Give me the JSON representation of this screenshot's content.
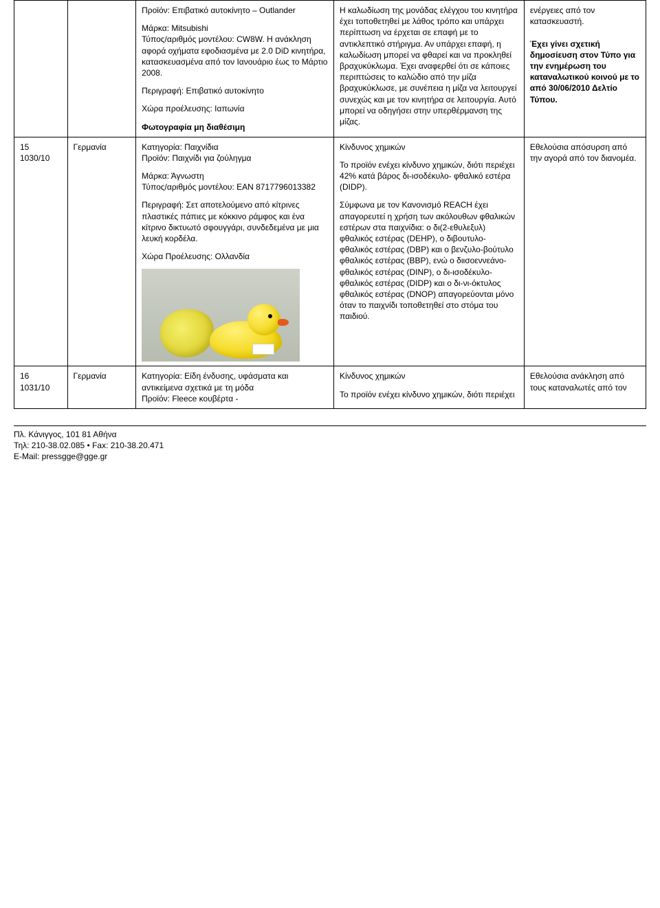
{
  "rows": [
    {
      "col1": "",
      "col2": "",
      "col3": [
        "Προϊόν: Επιβατικό αυτοκίνητο – Outlander",
        "Μάρκα: Mitsubishi\nΤύπος/αριθμός μοντέλου: CW8W. Η ανάκληση αφορά οχήματα εφοδιασμένα με 2.0 DiD κινητήρα, κατασκευασμένα από τον Ιανουάριο έως το Μάρτιο 2008.",
        "Περιγραφή: Επιβατικό αυτοκίνητο",
        "Χώρα προέλευσης: Ιαπωνία",
        "<b>Φωτογραφία μη διαθέσιμη</b>"
      ],
      "col4": "Η καλωδίωση της μονάδας ελέγχου του κινητήρα έχει τοποθετηθεί με λάθος τρόπο και υπάρχει περίπτωση να έρχεται σε επαφή με το αντικλεπτικό στήριγμα. Αν υπάρχει επαφή, η καλωδίωση μπορεί να φθαρεί και να προκληθεί βραχυκύκλωμα. Έχει αναφερθεί ότι σε κάποιες περιπτώσεις το καλώδιο από την μίζα βραχυκύκλωσε, με συνέπεια η μίζα να λειτουργεί συνεχώς και με τον κινητήρα σε λειτουργία. Αυτό μπορεί να οδηγήσει στην υπερθέρμανση της μίζας.",
      "col5": "ενέργειες από τον κατασκευαστή.\n\n<b>Έχει γίνει σχετική δημοσίευση στον Τύπο για την ενημέρωση του καταναλωτικού κοινού με το από 30/06/2010 Δελτίο Τύπου.</b>"
    },
    {
      "col1": "15\n1030/10",
      "col2": "Γερμανία",
      "col3": [
        "Κατηγορία: Παιχνίδια\nΠροϊόν: Παιχνίδι για ζούληγμα",
        "Μάρκα: Άγνωστη\nΤύπος/αριθμός μοντέλου: EAN 8717796013382",
        "Περιγραφή: Σετ αποτελούμενο από κίτρινες πλαστικές πάπιες με κόκκινο ράμφος και ένα κίτρινο δικτυωτό σφουγγάρι, συνδεδεμένα με μια λευκή κορδέλα.",
        "Χώρα Προέλευσης: Ολλανδία"
      ],
      "col3_photo": true,
      "col4_parts": [
        "Κίνδυνος χημικών",
        "Το προϊόν ενέχει κίνδυνο χημικών, διότι περιέχει 42% κατά βάρος δι-ισοδέκυλο- φθαλικό εστέρα (DIDP).",
        "Σύμφωνα με τον Κανονισμό REACH έχει απαγορευτεί η χρήση των ακόλουθων φθαλικών εστέρων στα παιχνίδια: ο δι(2-εθυλεξυλ) φθαλικός εστέρας (DEHP), ο διβουτυλο- φθαλικός εστέρας (DBP) και ο βενζυλο-βούτυλο φθαλικός εστέρας (BBP), ενώ ο διισοεννεάνο-φθαλικός εστέρας (DINP), ο δι-ισοδέκυλο- φθαλικός εστέρας (DIDP) και ο δι-νι-όκτυλος φθαλικός εστέρας (DNOP) απαγορεύονται μόνο όταν το παιχνίδι τοποθετηθεί στο στόμα του παιδιού."
      ],
      "col5": "Εθελούσια απόσυρση από την αγορά από τον διανομέα."
    },
    {
      "col1": "16\n1031/10",
      "col2": "Γερμανία",
      "col3_single": "Κατηγορία: Είδη ένδυσης, υφάσματα και αντικείμενα σχετικά με τη μόδα\nΠροϊόν: Fleece κουβέρτα -",
      "col4_parts": [
        "Κίνδυνος χημικών",
        "Το προϊόν ενέχει κίνδυνο χημικών, διότι περιέχει"
      ],
      "col5": "Εθελούσια ανάκληση από τους καταναλωτές από τον"
    }
  ],
  "footer": {
    "line1": "Πλ. Κάνιγγος, 101 81  Αθήνα",
    "line2": "Τηλ: 210-38.02.085 • Fax: 210-38.20.471",
    "line3": "E-Mail: pressgge@gge.gr"
  }
}
